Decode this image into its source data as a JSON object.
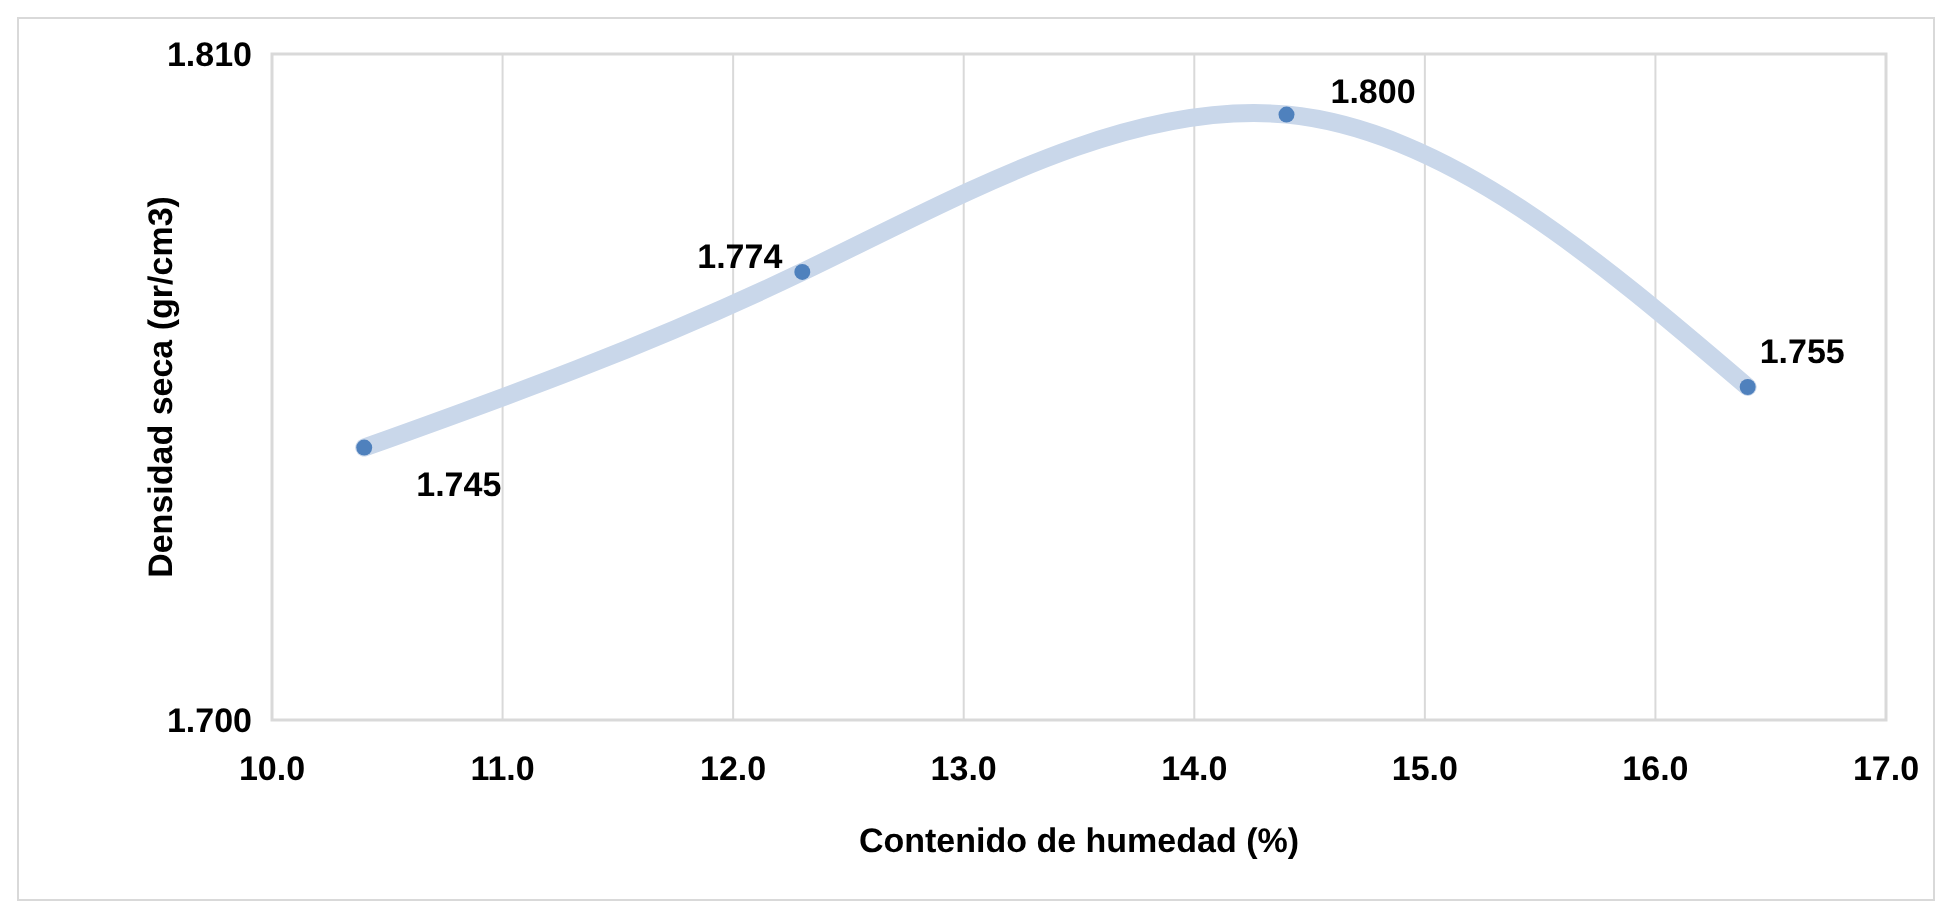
{
  "chart_data": {
    "type": "scatter",
    "xlabel": "Contenido de humedad (%)",
    "ylabel": "Densidad seca (gr/cm3)",
    "x": [
      10.4,
      12.3,
      14.4,
      16.4
    ],
    "series": [
      {
        "type": "line",
        "color": "#c9d7ea",
        "values": [
          1.745,
          1.774,
          1.8,
          1.755
        ],
        "marker": "none"
      },
      {
        "color": "#4f81bd",
        "values": [
          1.745,
          1.774,
          1.8,
          1.755
        ],
        "marker": "circle",
        "value_labels": [
          "1.745",
          "1.774",
          "1.800",
          "1.755"
        ]
      }
    ],
    "xlim": [
      10,
      17
    ],
    "xticks": [
      {
        "value": 10,
        "label": "10.0"
      },
      {
        "value": 11,
        "label": "11.0"
      },
      {
        "value": 12,
        "label": "12.0"
      },
      {
        "value": 13,
        "label": "13.0"
      },
      {
        "value": 14,
        "label": "14.0"
      },
      {
        "value": 15,
        "label": "15.0"
      },
      {
        "value": 16,
        "label": "16.0"
      },
      {
        "value": 17,
        "label": "17.0"
      }
    ],
    "ylim": [
      1.7,
      1.81
    ],
    "yticks": [
      {
        "value": 1.7,
        "label": "1.700"
      },
      {
        "value": 1.81,
        "label": "1.810"
      }
    ],
    "grid": "x"
  }
}
